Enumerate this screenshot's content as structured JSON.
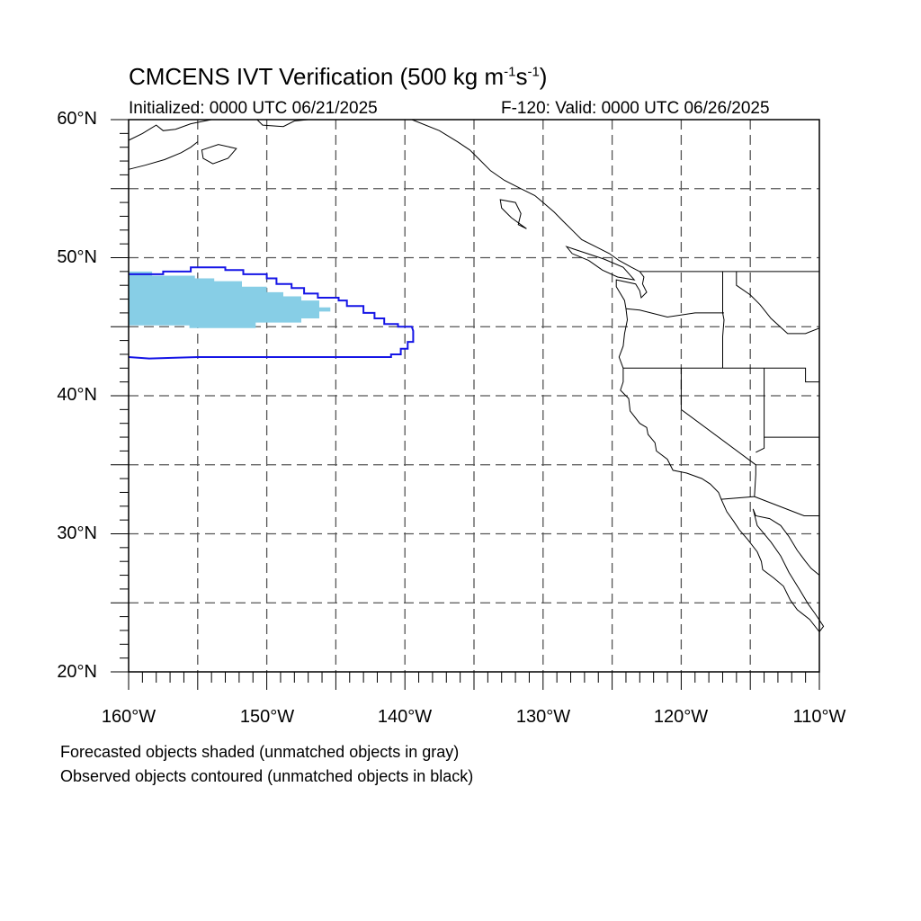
{
  "title": {
    "main": "CMCENS IVT Verification (500 kg m",
    "sup1": "-1",
    "mid": "s",
    "sup2": "-1",
    "end": ")"
  },
  "init_text": "Initialized: 0000 UTC 06/21/2025",
  "valid_text": "F-120: Valid: 0000 UTC 06/26/2025",
  "map": {
    "lon_range": [
      -160,
      -110
    ],
    "lat_range": [
      20,
      60
    ],
    "grid_spacing_deg": 5,
    "grid": "dashed",
    "lat_ticks": [
      {
        "value": 60,
        "label": "60°N"
      },
      {
        "value": 50,
        "label": "50°N"
      },
      {
        "value": 40,
        "label": "40°N"
      },
      {
        "value": 30,
        "label": "30°N"
      },
      {
        "value": 20,
        "label": "20°N"
      }
    ],
    "lon_ticks": [
      {
        "value": -160,
        "label": "160°W"
      },
      {
        "value": -150,
        "label": "150°W"
      },
      {
        "value": -140,
        "label": "140°W"
      },
      {
        "value": -130,
        "label": "130°W"
      },
      {
        "value": -120,
        "label": "120°W"
      },
      {
        "value": -110,
        "label": "110°W"
      }
    ]
  },
  "forecast_object_color": "#87CEE6",
  "observed_contour_color": "#1515E6",
  "forecast_object": [
    [
      -160,
      49.0
    ],
    [
      -158.3,
      49.0
    ],
    [
      -158.3,
      48.7
    ],
    [
      -155.2,
      48.7
    ],
    [
      -155.2,
      48.5
    ],
    [
      -153.8,
      48.5
    ],
    [
      -153.8,
      48.3
    ],
    [
      -151.8,
      48.3
    ],
    [
      -151.8,
      47.9
    ],
    [
      -150.0,
      47.9
    ],
    [
      -150.0,
      47.5
    ],
    [
      -148.8,
      47.5
    ],
    [
      -148.8,
      47.2
    ],
    [
      -147.5,
      47.2
    ],
    [
      -147.5,
      46.9
    ],
    [
      -146.2,
      46.9
    ],
    [
      -146.2,
      46.4
    ],
    [
      -145.4,
      46.4
    ],
    [
      -145.4,
      46.1
    ],
    [
      -146.2,
      46.1
    ],
    [
      -146.2,
      45.6
    ],
    [
      -147.5,
      45.6
    ],
    [
      -147.5,
      45.3
    ],
    [
      -150.8,
      45.3
    ],
    [
      -150.8,
      44.9
    ],
    [
      -155.6,
      44.9
    ],
    [
      -155.6,
      45.1
    ],
    [
      -160,
      45.1
    ]
  ],
  "observed_contour": [
    [
      -160,
      48.8
    ],
    [
      -157.5,
      48.8
    ],
    [
      -157.5,
      49.0
    ],
    [
      -155.5,
      49.0
    ],
    [
      -155.5,
      49.3
    ],
    [
      -153,
      49.3
    ],
    [
      -153,
      49.1
    ],
    [
      -151.7,
      49.1
    ],
    [
      -151.7,
      48.8
    ],
    [
      -150,
      48.8
    ],
    [
      -150,
      48.5
    ],
    [
      -149.3,
      48.5
    ],
    [
      -149.3,
      48.1
    ],
    [
      -148.2,
      48.1
    ],
    [
      -148.2,
      47.8
    ],
    [
      -147.3,
      47.8
    ],
    [
      -147.3,
      47.4
    ],
    [
      -146.3,
      47.4
    ],
    [
      -146.3,
      47.1
    ],
    [
      -144.8,
      47.1
    ],
    [
      -144.8,
      46.9
    ],
    [
      -144.2,
      46.9
    ],
    [
      -144.2,
      46.5
    ],
    [
      -143.0,
      46.5
    ],
    [
      -143.0,
      46.0
    ],
    [
      -142.2,
      46.0
    ],
    [
      -142.2,
      45.6
    ],
    [
      -141.5,
      45.6
    ],
    [
      -141.5,
      45.2
    ],
    [
      -140.5,
      45.2
    ],
    [
      -140.5,
      45.0
    ],
    [
      -139.5,
      45.0
    ],
    [
      -139.4,
      44.7
    ],
    [
      -139.4,
      43.9
    ],
    [
      -139.8,
      43.9
    ],
    [
      -139.8,
      43.4
    ],
    [
      -140.3,
      43.4
    ],
    [
      -140.3,
      43.0
    ],
    [
      -141.0,
      43.0
    ],
    [
      -141.0,
      42.8
    ],
    [
      -145.0,
      42.8
    ],
    [
      -155.0,
      42.8
    ],
    [
      -158.5,
      42.7
    ],
    [
      -160,
      42.8
    ]
  ],
  "notes": {
    "forecast": "Forecasted objects shaded (unmatched objects in gray)",
    "observed": "Observed objects contoured (unmatched objects in black)"
  }
}
